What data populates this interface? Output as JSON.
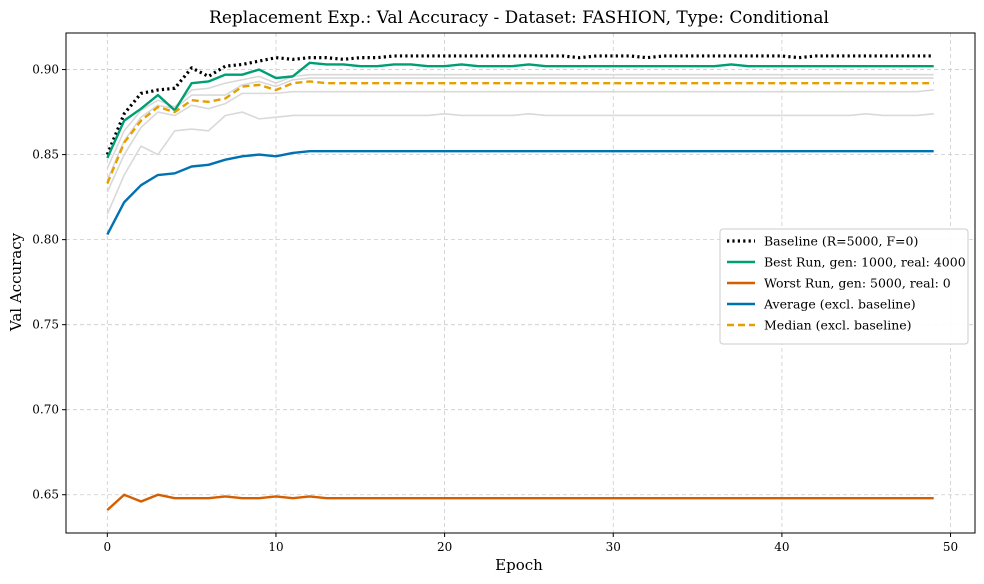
{
  "chart_data": {
    "type": "line",
    "title": "Replacement Exp.: Val Accuracy - Dataset: FASHION, Type: Conditional",
    "xlabel": "Epoch",
    "ylabel": "Val Accuracy",
    "xlim": [
      -2.45,
      51.45
    ],
    "ylim": [
      0.6275,
      0.9215
    ],
    "xticks": [
      0,
      10,
      20,
      30,
      40,
      50
    ],
    "yticks": [
      0.65,
      0.7,
      0.75,
      0.8,
      0.85,
      0.9
    ],
    "ytick_labels": [
      "0.65",
      "0.70",
      "0.75",
      "0.80",
      "0.85",
      "0.90"
    ],
    "grid": true,
    "legend_position": "center-right",
    "x": [
      0,
      1,
      2,
      3,
      4,
      5,
      6,
      7,
      8,
      9,
      10,
      11,
      12,
      13,
      14,
      15,
      16,
      17,
      18,
      19,
      20,
      21,
      22,
      23,
      24,
      25,
      26,
      27,
      28,
      29,
      30,
      31,
      32,
      33,
      34,
      35,
      36,
      37,
      38,
      39,
      40,
      41,
      42,
      43,
      44,
      45,
      46,
      47,
      48,
      49
    ],
    "series": [
      {
        "name": "Baseline (R=5000, F=0)",
        "color": "#000000",
        "style": "dotted",
        "width": 3.2,
        "legend": true,
        "values": [
          0.85,
          0.874,
          0.886,
          0.888,
          0.889,
          0.901,
          0.896,
          0.902,
          0.903,
          0.905,
          0.907,
          0.906,
          0.907,
          0.907,
          0.906,
          0.907,
          0.907,
          0.908,
          0.908,
          0.908,
          0.908,
          0.908,
          0.908,
          0.908,
          0.908,
          0.908,
          0.908,
          0.908,
          0.907,
          0.908,
          0.908,
          0.908,
          0.907,
          0.908,
          0.908,
          0.908,
          0.908,
          0.908,
          0.908,
          0.908,
          0.908,
          0.907,
          0.908,
          0.908,
          0.908,
          0.908,
          0.908,
          0.908,
          0.908,
          0.908
        ]
      },
      {
        "name": "Best Run, gen: 1000, real: 4000",
        "color": "#009e73",
        "style": "solid",
        "width": 2.4,
        "legend": true,
        "values": [
          0.848,
          0.87,
          0.877,
          0.885,
          0.876,
          0.892,
          0.893,
          0.897,
          0.897,
          0.9,
          0.895,
          0.896,
          0.904,
          0.903,
          0.903,
          0.902,
          0.902,
          0.903,
          0.903,
          0.902,
          0.902,
          0.903,
          0.902,
          0.902,
          0.902,
          0.903,
          0.902,
          0.902,
          0.902,
          0.902,
          0.902,
          0.902,
          0.902,
          0.902,
          0.902,
          0.902,
          0.902,
          0.903,
          0.902,
          0.902,
          0.902,
          0.902,
          0.902,
          0.902,
          0.902,
          0.902,
          0.902,
          0.902,
          0.902,
          0.902
        ]
      },
      {
        "name": "Worst Run, gen: 5000, real: 0",
        "color": "#d55e00",
        "style": "solid",
        "width": 2.4,
        "legend": true,
        "values": [
          0.641,
          0.65,
          0.646,
          0.65,
          0.648,
          0.648,
          0.648,
          0.649,
          0.648,
          0.648,
          0.649,
          0.648,
          0.649,
          0.648,
          0.648,
          0.648,
          0.648,
          0.648,
          0.648,
          0.648,
          0.648,
          0.648,
          0.648,
          0.648,
          0.648,
          0.648,
          0.648,
          0.648,
          0.648,
          0.648,
          0.648,
          0.648,
          0.648,
          0.648,
          0.648,
          0.648,
          0.648,
          0.648,
          0.648,
          0.648,
          0.648,
          0.648,
          0.648,
          0.648,
          0.648,
          0.648,
          0.648,
          0.648,
          0.648,
          0.648
        ]
      },
      {
        "name": "Average (excl. baseline)",
        "color": "#0072b2",
        "style": "solid",
        "width": 2.4,
        "legend": true,
        "values": [
          0.803,
          0.822,
          0.832,
          0.838,
          0.839,
          0.843,
          0.844,
          0.847,
          0.849,
          0.85,
          0.849,
          0.851,
          0.852,
          0.852,
          0.852,
          0.852,
          0.852,
          0.852,
          0.852,
          0.852,
          0.852,
          0.852,
          0.852,
          0.852,
          0.852,
          0.852,
          0.852,
          0.852,
          0.852,
          0.852,
          0.852,
          0.852,
          0.852,
          0.852,
          0.852,
          0.852,
          0.852,
          0.852,
          0.852,
          0.852,
          0.852,
          0.852,
          0.852,
          0.852,
          0.852,
          0.852,
          0.852,
          0.852,
          0.852,
          0.852
        ]
      },
      {
        "name": "Median (excl. baseline)",
        "color": "#e69f00",
        "style": "dashed",
        "width": 2.4,
        "legend": true,
        "values": [
          0.833,
          0.857,
          0.87,
          0.878,
          0.875,
          0.882,
          0.881,
          0.883,
          0.89,
          0.891,
          0.888,
          0.892,
          0.893,
          0.892,
          0.892,
          0.892,
          0.892,
          0.892,
          0.892,
          0.892,
          0.892,
          0.892,
          0.892,
          0.892,
          0.892,
          0.892,
          0.892,
          0.892,
          0.892,
          0.892,
          0.892,
          0.892,
          0.892,
          0.892,
          0.892,
          0.892,
          0.892,
          0.892,
          0.892,
          0.892,
          0.892,
          0.892,
          0.892,
          0.892,
          0.892,
          0.892,
          0.892,
          0.892,
          0.892,
          0.892
        ]
      },
      {
        "color": "#d9d9d9",
        "style": "solid",
        "width": 1.6,
        "legend": false,
        "values": [
          0.815,
          0.838,
          0.855,
          0.85,
          0.864,
          0.865,
          0.864,
          0.873,
          0.875,
          0.871,
          0.872,
          0.873,
          0.873,
          0.873,
          0.873,
          0.873,
          0.873,
          0.873,
          0.873,
          0.873,
          0.874,
          0.873,
          0.873,
          0.873,
          0.873,
          0.874,
          0.873,
          0.873,
          0.873,
          0.873,
          0.873,
          0.873,
          0.873,
          0.873,
          0.873,
          0.873,
          0.873,
          0.873,
          0.873,
          0.873,
          0.873,
          0.873,
          0.873,
          0.873,
          0.873,
          0.874,
          0.873,
          0.873,
          0.873,
          0.874
        ]
      },
      {
        "color": "#d9d9d9",
        "style": "solid",
        "width": 1.6,
        "legend": false,
        "values": [
          0.828,
          0.85,
          0.866,
          0.875,
          0.873,
          0.879,
          0.877,
          0.88,
          0.886,
          0.886,
          0.886,
          0.887,
          0.887,
          0.887,
          0.887,
          0.887,
          0.887,
          0.887,
          0.887,
          0.887,
          0.887,
          0.887,
          0.887,
          0.887,
          0.887,
          0.887,
          0.887,
          0.887,
          0.887,
          0.887,
          0.887,
          0.887,
          0.887,
          0.887,
          0.887,
          0.887,
          0.887,
          0.887,
          0.887,
          0.887,
          0.887,
          0.887,
          0.887,
          0.887,
          0.887,
          0.887,
          0.887,
          0.887,
          0.887,
          0.888
        ]
      },
      {
        "color": "#d9d9d9",
        "style": "solid",
        "width": 1.6,
        "legend": false,
        "values": [
          0.835,
          0.858,
          0.872,
          0.879,
          0.877,
          0.885,
          0.885,
          0.885,
          0.891,
          0.893,
          0.89,
          0.894,
          0.895,
          0.895,
          0.895,
          0.895,
          0.895,
          0.895,
          0.895,
          0.895,
          0.895,
          0.895,
          0.895,
          0.895,
          0.895,
          0.895,
          0.895,
          0.895,
          0.895,
          0.895,
          0.895,
          0.895,
          0.895,
          0.895,
          0.895,
          0.895,
          0.895,
          0.895,
          0.895,
          0.895,
          0.895,
          0.895,
          0.895,
          0.895,
          0.895,
          0.895,
          0.895,
          0.895,
          0.895,
          0.895
        ]
      },
      {
        "color": "#d9d9d9",
        "style": "solid",
        "width": 1.6,
        "legend": false,
        "values": [
          0.842,
          0.864,
          0.876,
          0.882,
          0.878,
          0.888,
          0.889,
          0.892,
          0.894,
          0.896,
          0.892,
          0.896,
          0.897,
          0.897,
          0.897,
          0.897,
          0.897,
          0.897,
          0.897,
          0.897,
          0.897,
          0.897,
          0.897,
          0.897,
          0.897,
          0.897,
          0.897,
          0.897,
          0.897,
          0.897,
          0.897,
          0.897,
          0.897,
          0.897,
          0.897,
          0.897,
          0.897,
          0.897,
          0.897,
          0.897,
          0.897,
          0.897,
          0.897,
          0.897,
          0.897,
          0.897,
          0.897,
          0.897,
          0.897,
          0.897
        ]
      }
    ]
  }
}
